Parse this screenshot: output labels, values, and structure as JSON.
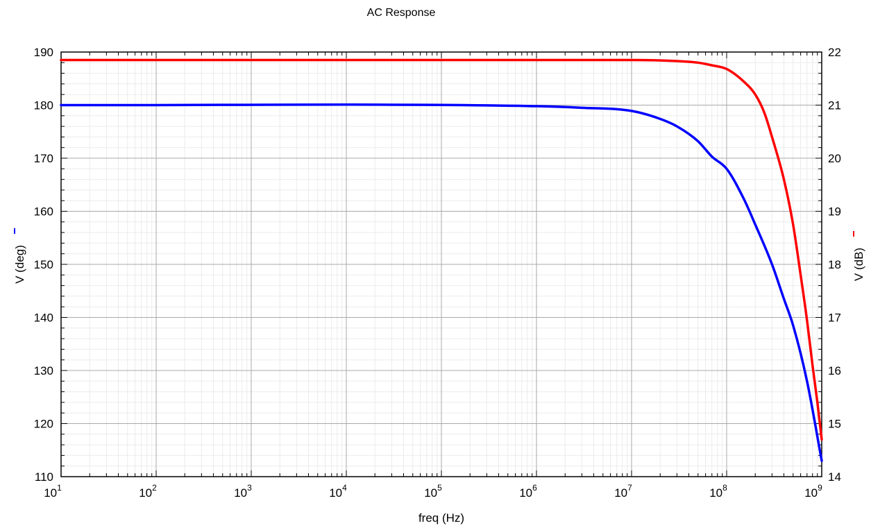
{
  "chart_data": {
    "type": "line",
    "title": "AC Response",
    "xlabel": "freq (Hz)",
    "x_scale": "log",
    "xlim": [
      10,
      1000000000
    ],
    "x_ticks": [
      {
        "base": "10",
        "exp": "1"
      },
      {
        "base": "10",
        "exp": "2"
      },
      {
        "base": "10",
        "exp": "3"
      },
      {
        "base": "10",
        "exp": "4"
      },
      {
        "base": "10",
        "exp": "5"
      },
      {
        "base": "10",
        "exp": "6"
      },
      {
        "base": "10",
        "exp": "7"
      },
      {
        "base": "10",
        "exp": "8"
      },
      {
        "base": "10",
        "exp": "9"
      }
    ],
    "ylabel_left": "V (deg)",
    "ylim_left": [
      110,
      190
    ],
    "yticks_left": [
      "110",
      "120",
      "130",
      "140",
      "150",
      "160",
      "170",
      "180",
      "190"
    ],
    "ylabel_right": "V (dB)",
    "ylim_right": [
      14,
      22
    ],
    "yticks_right": [
      "14",
      "15",
      "16",
      "17",
      "18",
      "19",
      "20",
      "21",
      "22"
    ],
    "grid": true,
    "minor_grid": true,
    "series": [
      {
        "axis": "left",
        "color": "#0000ff",
        "points": [
          [
            10,
            180
          ],
          [
            1000000,
            179.8
          ],
          [
            3000000,
            179.5
          ],
          [
            10000000,
            178.9
          ],
          [
            20000000,
            177.4
          ],
          [
            30000000,
            176
          ],
          [
            50000000,
            173.2
          ],
          [
            70000000,
            170.3
          ],
          [
            100000000,
            168
          ],
          [
            150000000,
            162.5
          ],
          [
            200000000,
            157.5
          ],
          [
            300000000,
            150
          ],
          [
            400000000,
            143.5
          ],
          [
            500000000,
            138.5
          ],
          [
            700000000,
            128
          ],
          [
            1000000000,
            113
          ]
        ]
      },
      {
        "axis": "right",
        "color": "#ff0000",
        "points": [
          [
            10,
            21.85
          ],
          [
            10000000,
            21.85
          ],
          [
            30000000,
            21.83
          ],
          [
            50000000,
            21.8
          ],
          [
            70000000,
            21.75
          ],
          [
            100000000,
            21.68
          ],
          [
            150000000,
            21.45
          ],
          [
            200000000,
            21.2
          ],
          [
            250000000,
            20.85
          ],
          [
            300000000,
            20.4
          ],
          [
            400000000,
            19.6
          ],
          [
            500000000,
            18.75
          ],
          [
            600000000,
            17.8
          ],
          [
            700000000,
            16.95
          ],
          [
            800000000,
            16.1
          ],
          [
            900000000,
            15.4
          ],
          [
            1000000000,
            14.7
          ]
        ]
      }
    ]
  }
}
